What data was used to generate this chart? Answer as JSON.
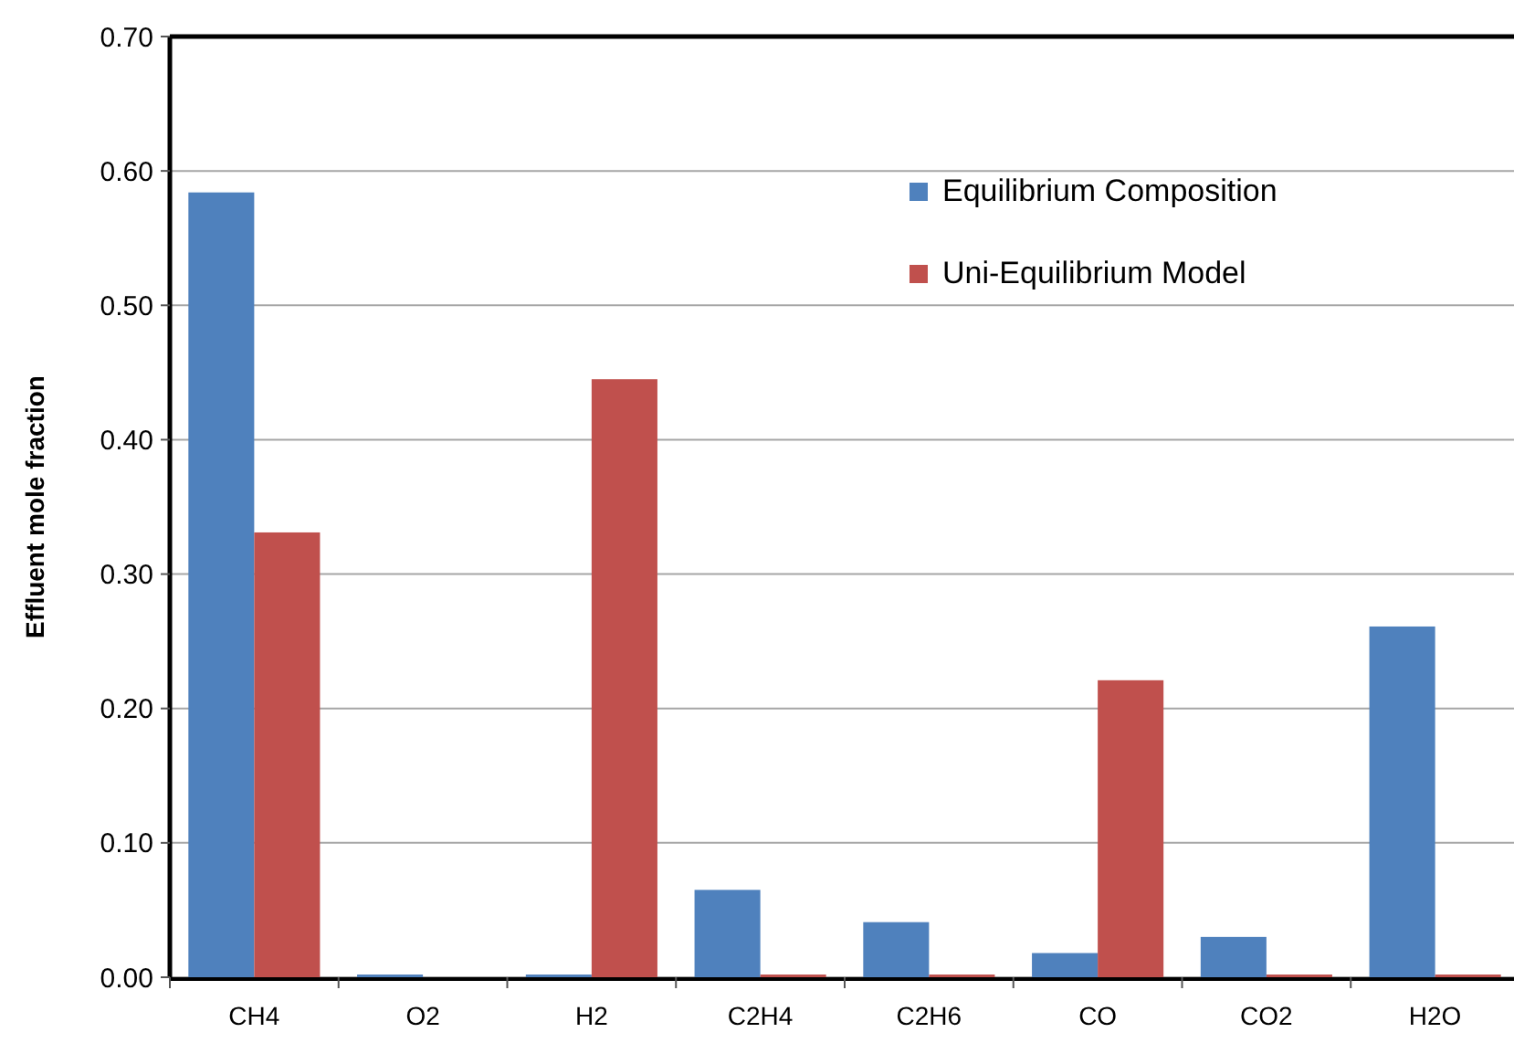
{
  "chart_data": {
    "type": "bar",
    "ylabel": "Effluent mole fraction",
    "categories": [
      "CH4",
      "O2",
      "H2",
      "C2H4",
      "C2H6",
      "CO",
      "CO2",
      "H2O"
    ],
    "series": [
      {
        "name": "Equilibrium Composition",
        "color": "#4f81bd",
        "values": [
          0.584,
          0.002,
          0.002,
          0.065,
          0.041,
          0.018,
          0.03,
          0.261
        ]
      },
      {
        "name": "Uni-Equilibrium Model",
        "color": "#c0504d",
        "values": [
          0.331,
          0,
          0.445,
          0.002,
          0.002,
          0.221,
          0.002,
          0.002
        ]
      }
    ],
    "ylim": [
      0,
      0.7
    ],
    "yticks": [
      {
        "value": 0,
        "label": "0.00"
      },
      {
        "value": 0.1,
        "label": "0.10"
      },
      {
        "value": 0.2,
        "label": "0.20"
      },
      {
        "value": 0.3,
        "label": "0.30"
      },
      {
        "value": 0.4,
        "label": "0.40"
      },
      {
        "value": 0.5,
        "label": "0.50"
      },
      {
        "value": 0.6,
        "label": "0.60"
      },
      {
        "value": 0.7,
        "label": "0.70"
      }
    ],
    "grid": "y",
    "legend": "top right"
  }
}
